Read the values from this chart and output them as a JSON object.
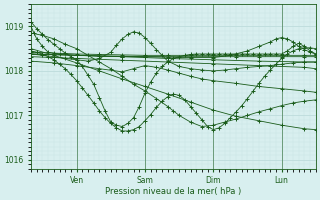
{
  "xlabel": "Pression niveau de la mer( hPa )",
  "bg_color": "#d8efef",
  "grid_color_major": "#b8d8d8",
  "grid_color_minor": "#c8e4e4",
  "line_color": "#1a5c1a",
  "ylim": [
    1015.8,
    1019.3
  ],
  "yticks": [
    1016,
    1017,
    1018,
    1019
  ],
  "xlim": [
    0,
    100
  ],
  "xtick_positions": [
    16,
    40,
    64,
    88
  ],
  "xtick_labels": [
    "Ven",
    "Sam",
    "Dim",
    "Lun"
  ],
  "vline_positions": [
    16,
    40,
    64,
    88
  ],
  "series": [
    {
      "x": [
        0,
        2,
        4,
        6,
        8,
        10,
        12,
        14,
        16,
        18,
        20,
        22,
        24,
        26,
        28,
        30,
        32,
        34,
        36,
        38,
        40,
        42,
        44,
        46,
        48,
        50,
        52,
        54,
        56,
        58,
        60,
        62,
        64,
        66,
        68,
        70,
        72,
        74,
        76,
        78,
        80,
        82,
        84,
        86,
        88,
        90,
        92,
        94,
        96,
        98,
        100
      ],
      "y": [
        1019.1,
        1018.95,
        1018.82,
        1018.7,
        1018.6,
        1018.5,
        1018.4,
        1018.32,
        1018.25,
        1018.1,
        1017.9,
        1017.7,
        1017.4,
        1017.1,
        1016.85,
        1016.78,
        1016.75,
        1016.82,
        1016.95,
        1017.2,
        1017.5,
        1017.75,
        1017.95,
        1018.1,
        1018.2,
        1018.28,
        1018.32,
        1018.35,
        1018.37,
        1018.38,
        1018.38,
        1018.38,
        1018.38,
        1018.38,
        1018.38,
        1018.38,
        1018.38,
        1018.38,
        1018.38,
        1018.38,
        1018.38,
        1018.38,
        1018.38,
        1018.38,
        1018.38,
        1018.45,
        1018.55,
        1018.62,
        1018.55,
        1018.45,
        1018.38
      ]
    },
    {
      "x": [
        0,
        4,
        8,
        12,
        16,
        20,
        24,
        28,
        32,
        36,
        40,
        44,
        48,
        50,
        52,
        56,
        60,
        64,
        68,
        72,
        76,
        80,
        84,
        88,
        92,
        96,
        100
      ],
      "y": [
        1018.85,
        1018.8,
        1018.72,
        1018.6,
        1018.5,
        1018.35,
        1018.2,
        1018.05,
        1017.88,
        1017.7,
        1017.55,
        1017.38,
        1017.2,
        1017.1,
        1017.0,
        1016.85,
        1016.75,
        1016.78,
        1016.85,
        1016.92,
        1017.0,
        1017.08,
        1017.15,
        1017.22,
        1017.28,
        1017.32,
        1017.35
      ]
    },
    {
      "x": [
        0,
        8,
        16,
        24,
        32,
        40,
        48,
        56,
        64,
        72,
        80,
        88,
        96,
        100
      ],
      "y": [
        1018.42,
        1018.4,
        1018.38,
        1018.37,
        1018.36,
        1018.35,
        1018.35,
        1018.35,
        1018.35,
        1018.35,
        1018.35,
        1018.35,
        1018.35,
        1018.35
      ]
    },
    {
      "x": [
        0,
        16,
        32,
        48,
        64,
        80,
        96,
        100
      ],
      "y": [
        1018.38,
        1018.35,
        1018.32,
        1018.28,
        1018.25,
        1018.22,
        1018.2,
        1018.2
      ]
    },
    {
      "x": [
        0,
        16,
        32,
        48,
        64,
        80,
        96,
        100
      ],
      "y": [
        1018.32,
        1018.28,
        1018.24,
        1018.2,
        1018.16,
        1018.12,
        1018.08,
        1018.05
      ]
    },
    {
      "x": [
        0,
        8,
        16,
        24,
        32,
        36,
        40,
        44,
        48,
        52,
        56,
        60,
        64,
        72,
        80,
        88,
        96,
        100
      ],
      "y": [
        1018.22,
        1018.18,
        1018.12,
        1018.05,
        1017.98,
        1018.05,
        1018.12,
        1018.08,
        1018.02,
        1017.95,
        1017.88,
        1017.82,
        1017.78,
        1017.72,
        1017.65,
        1017.6,
        1017.55,
        1017.52
      ]
    },
    {
      "x": [
        0,
        8,
        16,
        24,
        32,
        40,
        48,
        56,
        64,
        72,
        80,
        88,
        96,
        100
      ],
      "y": [
        1018.5,
        1018.35,
        1018.18,
        1018.0,
        1017.82,
        1017.65,
        1017.48,
        1017.3,
        1017.12,
        1016.98,
        1016.88,
        1016.78,
        1016.7,
        1016.68
      ]
    },
    {
      "x": [
        0,
        2,
        4,
        6,
        8,
        10,
        12,
        14,
        16,
        18,
        20,
        22,
        24,
        26,
        28,
        30,
        32,
        34,
        36,
        38,
        40,
        42,
        44,
        46,
        48,
        50,
        52,
        54,
        56,
        58,
        60,
        62,
        64,
        66,
        68,
        70,
        72,
        74,
        76,
        78,
        80,
        82,
        84,
        86,
        88,
        90,
        92,
        94,
        96,
        98,
        100
      ],
      "y": [
        1018.45,
        1018.42,
        1018.38,
        1018.32,
        1018.25,
        1018.15,
        1018.05,
        1017.92,
        1017.78,
        1017.62,
        1017.45,
        1017.28,
        1017.1,
        1016.95,
        1016.82,
        1016.72,
        1016.65,
        1016.65,
        1016.68,
        1016.75,
        1016.88,
        1017.02,
        1017.18,
        1017.32,
        1017.42,
        1017.48,
        1017.45,
        1017.35,
        1017.2,
        1017.05,
        1016.9,
        1016.75,
        1016.68,
        1016.72,
        1016.82,
        1016.95,
        1017.08,
        1017.22,
        1017.38,
        1017.55,
        1017.72,
        1017.88,
        1018.02,
        1018.15,
        1018.28,
        1018.38,
        1018.45,
        1018.5,
        1018.52,
        1018.52,
        1018.5
      ]
    },
    {
      "x": [
        0,
        4,
        8,
        12,
        16,
        20,
        24,
        28,
        30,
        32,
        34,
        36,
        38,
        40,
        42,
        44,
        46,
        48,
        52,
        56,
        60,
        64,
        68,
        72,
        76,
        80,
        84,
        88,
        92,
        96,
        100
      ],
      "y": [
        1018.38,
        1018.35,
        1018.32,
        1018.28,
        1018.25,
        1018.22,
        1018.28,
        1018.42,
        1018.58,
        1018.72,
        1018.82,
        1018.88,
        1018.85,
        1018.75,
        1018.62,
        1018.48,
        1018.35,
        1018.22,
        1018.1,
        1018.05,
        1018.02,
        1018.0,
        1018.02,
        1018.05,
        1018.08,
        1018.1,
        1018.12,
        1018.15,
        1018.18,
        1018.2,
        1018.2
      ]
    },
    {
      "x": [
        0,
        1,
        2,
        4,
        6,
        10,
        16,
        24,
        32,
        40,
        48,
        56,
        64,
        72,
        80,
        88,
        96,
        100
      ],
      "y": [
        1019.0,
        1018.85,
        1018.72,
        1018.55,
        1018.42,
        1018.38,
        1018.35,
        1018.33,
        1018.32,
        1018.32,
        1018.32,
        1018.32,
        1018.32,
        1018.32,
        1018.32,
        1018.32,
        1018.32,
        1018.32
      ]
    },
    {
      "x": [
        0,
        16,
        40,
        56,
        64,
        70,
        76,
        80,
        84,
        86,
        88,
        90,
        92,
        94,
        96,
        98,
        100
      ],
      "y": [
        1018.38,
        1018.35,
        1018.32,
        1018.3,
        1018.3,
        1018.35,
        1018.45,
        1018.55,
        1018.65,
        1018.72,
        1018.75,
        1018.72,
        1018.65,
        1018.55,
        1018.48,
        1018.42,
        1018.38
      ]
    }
  ]
}
